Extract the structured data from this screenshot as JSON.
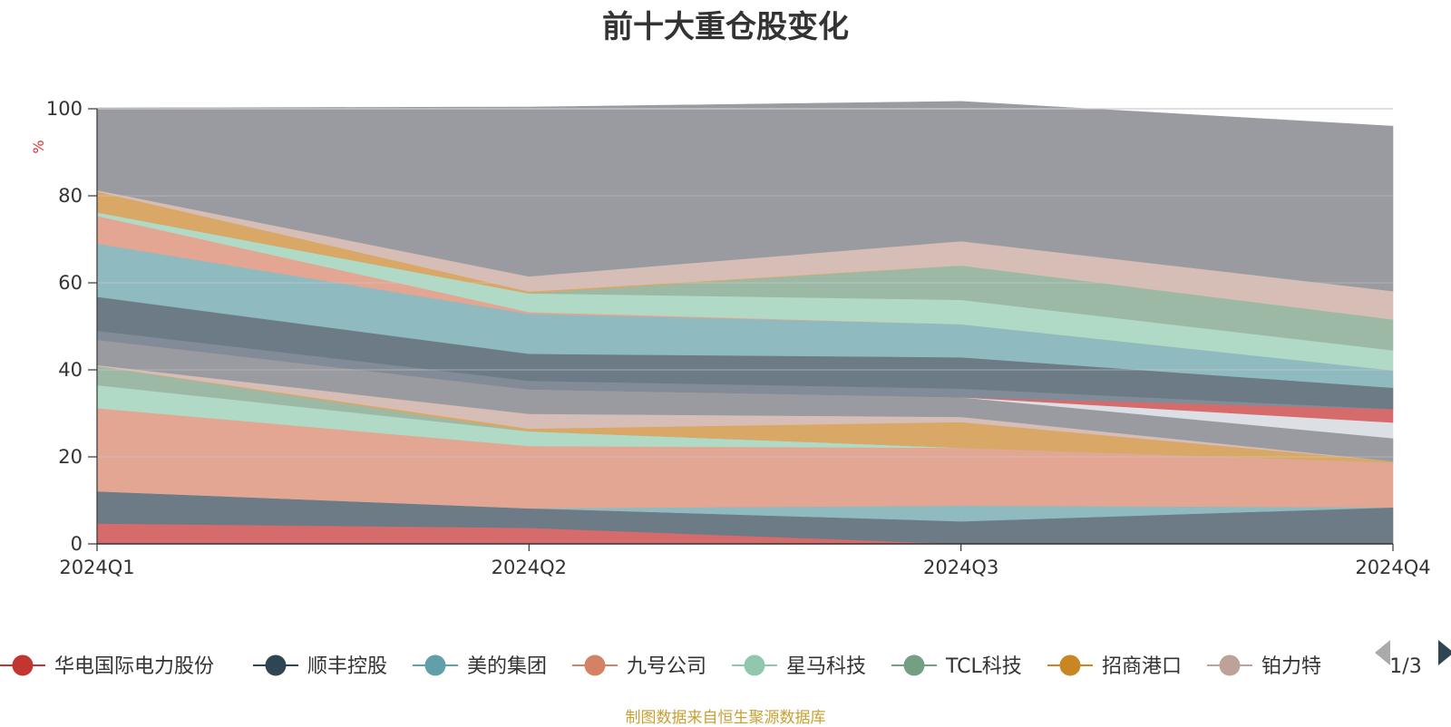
{
  "chart_data": {
    "type": "area",
    "stacked": true,
    "title": "前十大重仓股变化",
    "ylabel": "%",
    "ylim": [
      0,
      100
    ],
    "yticks": [
      0,
      20,
      40,
      60,
      80,
      100
    ],
    "categories": [
      "2024Q1",
      "2024Q2",
      "2024Q3",
      "2024Q4"
    ],
    "grid": true,
    "legend_position": "bottom",
    "legend_page": "1/3",
    "series": [
      {
        "name": "华电国际电力股份",
        "color": "#d66b6b",
        "values": [
          4.7,
          3.7,
          0,
          0
        ]
      },
      {
        "name": "顺丰控股",
        "color": "#6d7b87",
        "values": [
          7.4,
          4.5,
          5.2,
          8.4
        ]
      },
      {
        "name": "美的集团",
        "color": "#8fbac0",
        "values": [
          0,
          0,
          3.6,
          0
        ]
      },
      {
        "name": "九号公司",
        "color": "#e2a692",
        "values": [
          19.1,
          14.3,
          13.3,
          10.3
        ]
      },
      {
        "name": "星马科技",
        "color": "#b0dac6",
        "values": [
          5.3,
          3.4,
          0,
          0
        ]
      },
      {
        "name": "TCL科技",
        "color": "#9cb9a5",
        "values": [
          4.4,
          0,
          0,
          0
        ]
      },
      {
        "name": "招商港口",
        "color": "#d9a866",
        "values": [
          0,
          0.6,
          5.9,
          0.3
        ]
      },
      {
        "name": "铂力特",
        "color": "#d6bdb5",
        "values": [
          0.2,
          3.4,
          1.2,
          0
        ]
      },
      {
        "name": "",
        "color": "#9a9ba0",
        "values": [
          5.8,
          5.6,
          4.5,
          5.3
        ]
      },
      {
        "name": "",
        "color": "#dce0e6",
        "values": [
          0,
          0,
          0,
          3.6
        ]
      },
      {
        "name": "",
        "color": "#d66b6b",
        "values": [
          0,
          0,
          0,
          3.1
        ]
      },
      {
        "name": "",
        "color": "#818c98",
        "values": [
          2.1,
          2.0,
          2.0,
          0
        ]
      },
      {
        "name": "",
        "color": "#6d7b87",
        "values": [
          7.8,
          6.2,
          7.2,
          4.9
        ]
      },
      {
        "name": "",
        "color": "#8fbac0",
        "values": [
          12.2,
          9.2,
          7.6,
          4.0
        ]
      },
      {
        "name": "",
        "color": "#e2a692",
        "values": [
          6.4,
          0.4,
          0,
          0
        ]
      },
      {
        "name": "",
        "color": "#b0dac6",
        "values": [
          0.8,
          4.3,
          5.6,
          4.6
        ]
      },
      {
        "name": "",
        "color": "#9cb9a5",
        "values": [
          0,
          0,
          7.9,
          7.1
        ]
      },
      {
        "name": "",
        "color": "#d9a866",
        "values": [
          4.8,
          0.4,
          0,
          0
        ]
      },
      {
        "name": "",
        "color": "#d6bdb5",
        "values": [
          0.3,
          3.5,
          5.6,
          6.5
        ]
      },
      {
        "name": "",
        "color": "#9a9ba0",
        "values": [
          18.9,
          38.9,
          32.1,
          37.9
        ]
      }
    ]
  },
  "legend": {
    "items": [
      {
        "label": "华电国际电力股份",
        "color": "#c23531"
      },
      {
        "label": "顺丰控股",
        "color": "#2f4554"
      },
      {
        "label": "美的集团",
        "color": "#61a0a8"
      },
      {
        "label": "九号公司",
        "color": "#d48265"
      },
      {
        "label": "星马科技",
        "color": "#91c7ae"
      },
      {
        "label": "TCL科技",
        "color": "#749f83"
      },
      {
        "label": "招商港口",
        "color": "#ca8622"
      },
      {
        "label": "铂力特",
        "color": "#bda29a"
      }
    ],
    "page_label": "1/3"
  },
  "colors": {
    "axis": "#333333",
    "grid": "#cccccc",
    "unit_label": "#e03030",
    "source": "#c8a034",
    "nav_prev": "#aaaaaa",
    "nav_next": "#2f4554"
  },
  "source_note": "制图数据来自恒生聚源数据库"
}
